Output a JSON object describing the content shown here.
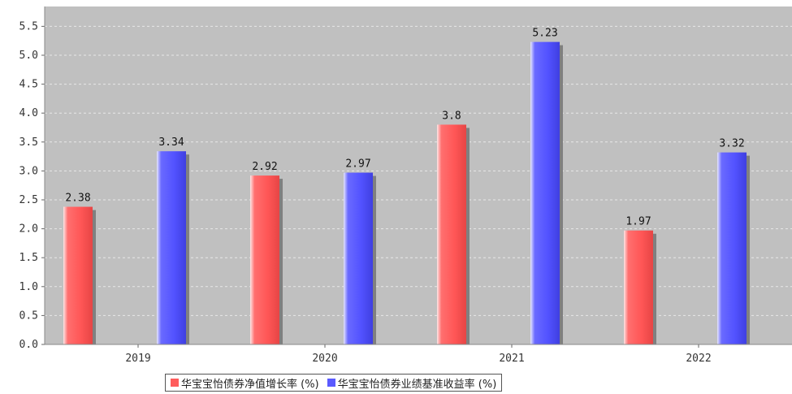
{
  "chart_data": {
    "type": "bar",
    "categories": [
      "2019",
      "2020",
      "2021",
      "2022"
    ],
    "series": [
      {
        "name": "华宝宝怡债券净值增长率 (%)",
        "values": [
          2.38,
          2.92,
          3.8,
          1.97
        ],
        "color": "#ff5c5c"
      },
      {
        "name": "华宝宝怡债券业绩基准收益率 (%)",
        "values": [
          3.34,
          2.97,
          5.23,
          3.32
        ],
        "color": "#5a5aff"
      }
    ],
    "value_labels": [
      [
        "2.38",
        "2.92",
        "3.8",
        "1.97"
      ],
      [
        "3.34",
        "2.97",
        "5.23",
        "3.32"
      ]
    ],
    "y_ticks": [
      "0.0",
      "0.5",
      "1.0",
      "1.5",
      "2.0",
      "2.5",
      "3.0",
      "3.5",
      "4.0",
      "4.5",
      "5.0",
      "5.5"
    ],
    "ylim": [
      0,
      5.6
    ],
    "grid": true,
    "legend_position": "bottom",
    "plot_background": "#c0c0c0"
  },
  "legend": {
    "items": [
      {
        "label": "华宝宝怡债券净值增长率 (%)",
        "color": "#ff5c5c"
      },
      {
        "label": "华宝宝怡债券业绩基准收益率 (%)",
        "color": "#5a5aff"
      }
    ]
  }
}
